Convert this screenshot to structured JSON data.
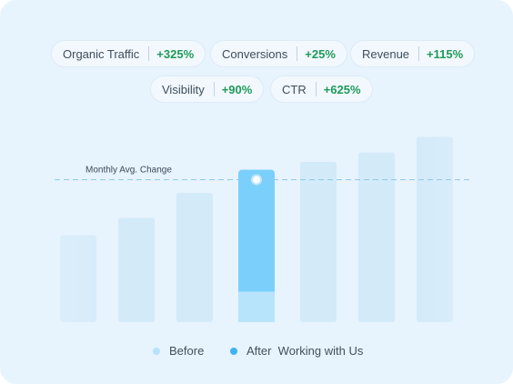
{
  "metrics": [
    {
      "label": "Organic Traffic",
      "value": "+325%"
    },
    {
      "label": "Conversions",
      "value": "+25%"
    },
    {
      "label": "Revenue",
      "value": "+115%"
    },
    {
      "label": "Visibility",
      "value": "+90%"
    },
    {
      "label": "CTR",
      "value": "+625%"
    }
  ],
  "chart_data": {
    "type": "bar",
    "annotation": "Monthly Avg. Change",
    "bar_heights_relative": [
      0.45,
      0.54,
      0.67,
      0.79,
      0.83,
      0.88,
      0.96
    ],
    "highlighted_bar_index": 3,
    "highlighted_before_fraction": 0.2,
    "series": [
      {
        "name": "Before",
        "color": "#b7e2fb"
      },
      {
        "name": "After  Working with Us",
        "color": "#40b2f2"
      }
    ]
  },
  "colors": {
    "card_bg": "#e7f3fd",
    "bar_faded": "#d3eaf9",
    "bar_highlight_after": "#7ad0fb",
    "bar_highlight_before": "#b8e4fb",
    "reference_line": "#8ccbee",
    "positive": "#1f9a58"
  },
  "legend": {
    "before": "Before",
    "after": "After  Working with Us"
  }
}
